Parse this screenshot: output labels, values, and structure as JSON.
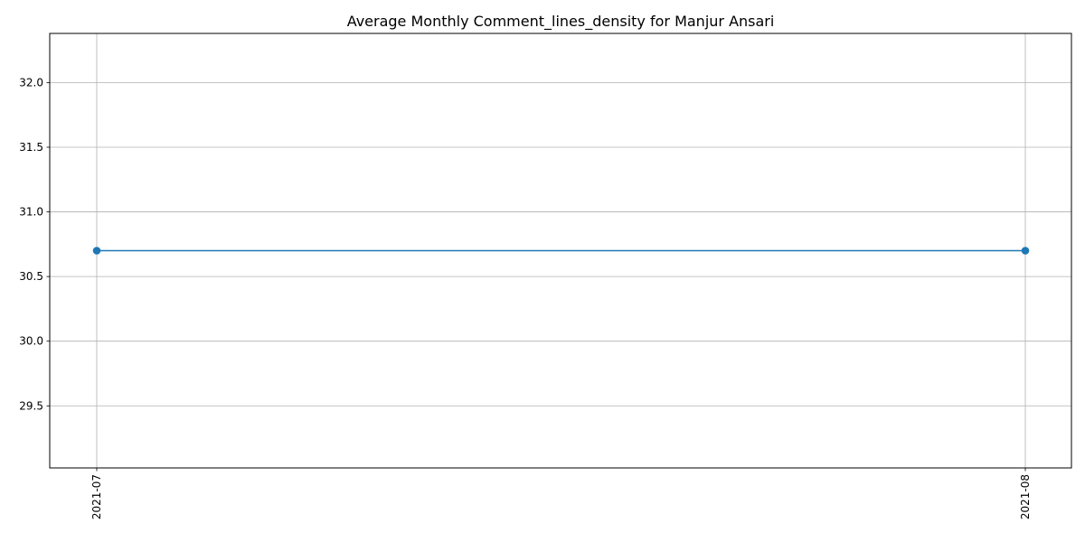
{
  "chart_data": {
    "type": "line",
    "title": "Average Monthly Comment_lines_density for Manjur Ansari",
    "xlabel": "",
    "ylabel": "",
    "categories": [
      "2021-07",
      "2021-08"
    ],
    "series": [
      {
        "values": [
          30.7,
          30.7
        ]
      }
    ],
    "ylim": [
      29.02,
      32.38
    ],
    "yticks": [
      29.5,
      30.0,
      30.5,
      31.0,
      31.5,
      32.0
    ],
    "ytick_labels": [
      "29.5",
      "30.0",
      "30.5",
      "31.0",
      "31.5",
      "32.0"
    ],
    "grid": true,
    "marker": "circle",
    "line_color": "#1f77b4",
    "x_tick_rotation": "vertical"
  }
}
